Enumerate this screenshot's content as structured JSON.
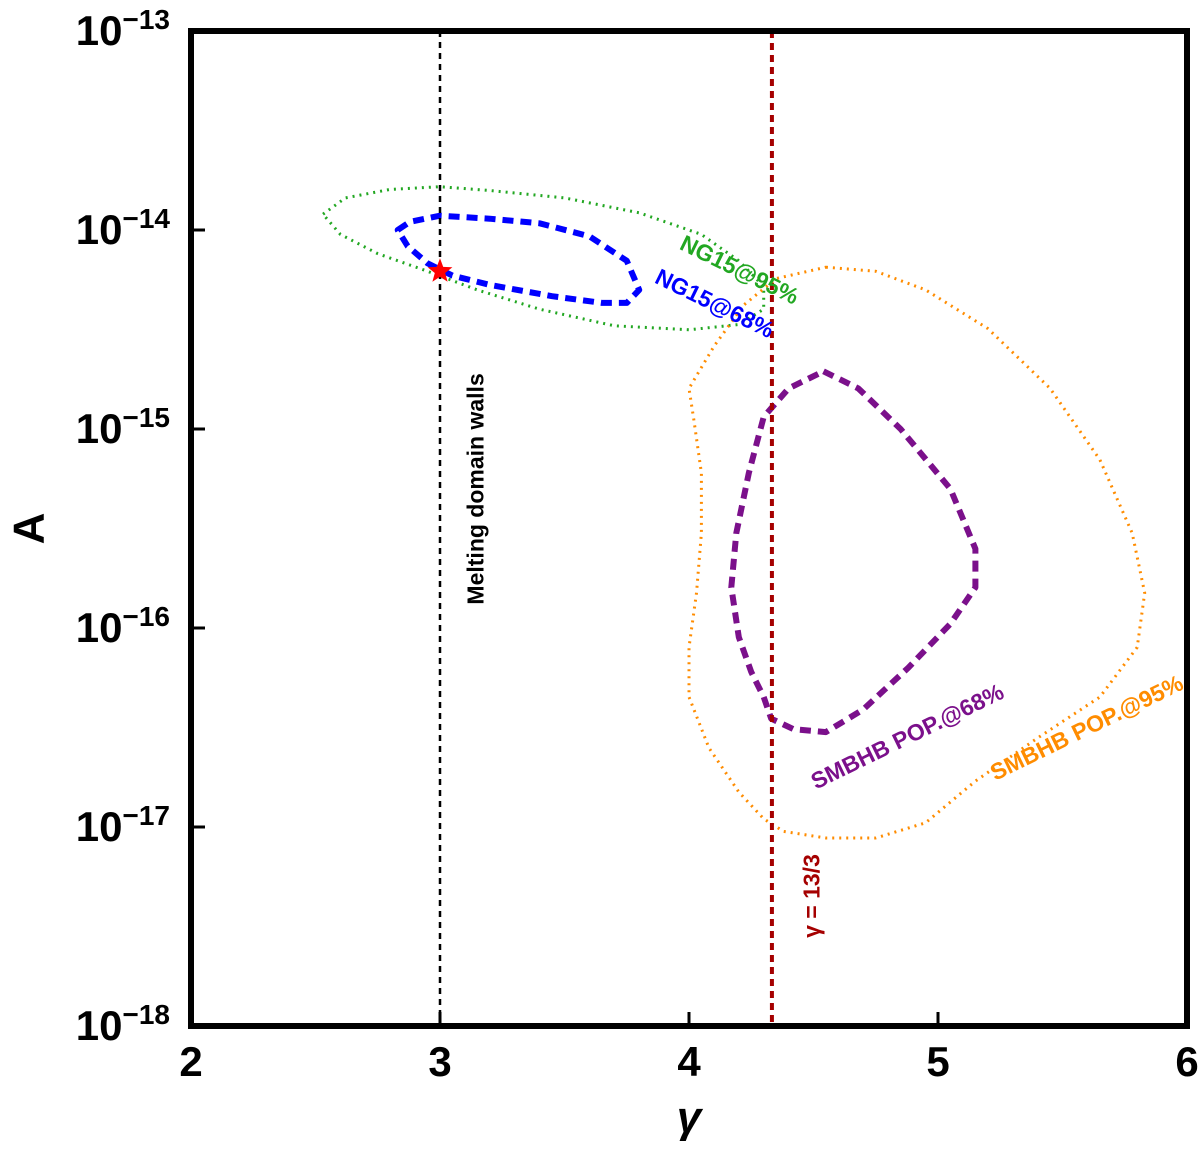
{
  "chart_data": {
    "type": "line",
    "title": "",
    "xlabel": "γ",
    "ylabel": "A",
    "xlim": [
      2,
      6
    ],
    "ylim": [
      1e-18,
      1e-13
    ],
    "yscale": "log",
    "grid": false,
    "x_ticks": [
      "2",
      "3",
      "4",
      "5",
      "6"
    ],
    "y_ticks": [
      {
        "base": "10",
        "exp": "−13"
      },
      {
        "base": "10",
        "exp": "−14"
      },
      {
        "base": "10",
        "exp": "−15"
      },
      {
        "base": "10",
        "exp": "−16"
      },
      {
        "base": "10",
        "exp": "−17"
      },
      {
        "base": "10",
        "exp": "−18"
      }
    ],
    "vlines": [
      {
        "x": 3.0,
        "color": "#000000",
        "style": "dashed",
        "label": "Melting domain walls"
      },
      {
        "x": 4.333,
        "color": "#a50000",
        "style": "dashed",
        "label": "γ = 13/3"
      }
    ],
    "marker": {
      "x": 3.0,
      "y": 6.2e-15,
      "shape": "star",
      "color": "#ff0000"
    },
    "series": [
      {
        "name": "NG15@95%",
        "color": "#22a722",
        "style": "dotted",
        "closed": true,
        "points": [
          [
            2.53,
            1.2e-14
          ],
          [
            2.62,
            1.45e-14
          ],
          [
            2.8,
            1.6e-14
          ],
          [
            3.0,
            1.65e-14
          ],
          [
            3.2,
            1.58e-14
          ],
          [
            3.5,
            1.45e-14
          ],
          [
            3.8,
            1.22e-14
          ],
          [
            4.05,
            9.5e-15
          ],
          [
            4.2,
            7e-15
          ],
          [
            4.3,
            5.2e-15
          ],
          [
            4.3,
            4e-15
          ],
          [
            4.2,
            3.35e-15
          ],
          [
            4.0,
            3.15e-15
          ],
          [
            3.7,
            3.3e-15
          ],
          [
            3.4,
            4e-15
          ],
          [
            3.15,
            5e-15
          ],
          [
            2.95,
            6.2e-15
          ],
          [
            2.75,
            7.6e-15
          ],
          [
            2.6,
            9.5e-15
          ],
          [
            2.53,
            1.2e-14
          ]
        ]
      },
      {
        "name": "NG15@68%",
        "color": "#0000ff",
        "style": "dashed",
        "closed": true,
        "points": [
          [
            2.83,
            1e-14
          ],
          [
            2.88,
            1.1e-14
          ],
          [
            3.0,
            1.18e-14
          ],
          [
            3.2,
            1.14e-14
          ],
          [
            3.4,
            1.08e-14
          ],
          [
            3.6,
            9.3e-15
          ],
          [
            3.75,
            7e-15
          ],
          [
            3.8,
            5e-15
          ],
          [
            3.75,
            4.3e-15
          ],
          [
            3.65,
            4.3e-15
          ],
          [
            3.45,
            4.65e-15
          ],
          [
            3.2,
            5.3e-15
          ],
          [
            3.05,
            5.9e-15
          ],
          [
            2.95,
            6.8e-15
          ],
          [
            2.87,
            8.3e-15
          ],
          [
            2.83,
            1e-14
          ]
        ]
      },
      {
        "name": "SMBHB POP.@95%",
        "color": "#ff8c00",
        "style": "dotted",
        "closed": true,
        "points": [
          [
            4.55,
            6.5e-15
          ],
          [
            4.75,
            6.2e-15
          ],
          [
            4.95,
            5e-15
          ],
          [
            5.2,
            3.2e-15
          ],
          [
            5.45,
            1.6e-15
          ],
          [
            5.65,
            7e-16
          ],
          [
            5.78,
            3e-16
          ],
          [
            5.83,
            1.5e-16
          ],
          [
            5.8,
            8e-17
          ],
          [
            5.65,
            4.5e-17
          ],
          [
            5.4,
            2.8e-17
          ],
          [
            5.15,
            1.7e-17
          ],
          [
            4.95,
            1.05e-17
          ],
          [
            4.75,
            8.8e-18
          ],
          [
            4.55,
            8.8e-18
          ],
          [
            4.38,
            9.5e-18
          ],
          [
            4.3,
            1.1e-17
          ],
          [
            4.2,
            1.5e-17
          ],
          [
            4.08,
            2.5e-17
          ],
          [
            4.0,
            4.5e-17
          ],
          [
            4.0,
            8e-17
          ],
          [
            4.03,
            1.5e-16
          ],
          [
            4.05,
            3e-16
          ],
          [
            4.05,
            6e-16
          ],
          [
            4.02,
            1.1e-15
          ],
          [
            4.0,
            1.6e-15
          ],
          [
            4.1,
            2.6e-15
          ],
          [
            4.22,
            4.2e-15
          ],
          [
            4.35,
            5.7e-15
          ],
          [
            4.55,
            6.5e-15
          ]
        ]
      },
      {
        "name": "SMBHB POP.@68%",
        "color": "#7b108b",
        "style": "dashed",
        "closed": true,
        "points": [
          [
            4.54,
            1.95e-15
          ],
          [
            4.68,
            1.6e-15
          ],
          [
            4.85,
            1e-15
          ],
          [
            5.05,
            5e-16
          ],
          [
            5.15,
            2.5e-16
          ],
          [
            5.15,
            1.6e-16
          ],
          [
            5.05,
            1.05e-16
          ],
          [
            4.88,
            6.3e-17
          ],
          [
            4.7,
            3.9e-17
          ],
          [
            4.55,
            3e-17
          ],
          [
            4.42,
            3.1e-17
          ],
          [
            4.33,
            3.5e-17
          ],
          [
            4.3,
            4.5e-17
          ],
          [
            4.25,
            6e-17
          ],
          [
            4.2,
            9e-17
          ],
          [
            4.17,
            1.6e-16
          ],
          [
            4.19,
            3e-16
          ],
          [
            4.24,
            6e-16
          ],
          [
            4.3,
            1.15e-15
          ],
          [
            4.4,
            1.6e-15
          ],
          [
            4.54,
            1.95e-15
          ]
        ]
      }
    ],
    "annotations": [
      {
        "text": "NG15@95%",
        "color": "#22a722",
        "x": 4.2,
        "y": 6.2e-15,
        "rotate": 26
      },
      {
        "text": "NG15@68%",
        "color": "#0000ff",
        "x": 4.1,
        "y": 4.2e-15,
        "rotate": 26
      },
      {
        "text": "SMBHB POP.@68%",
        "color": "#7b108b",
        "x": 4.88,
        "y": 2.8e-17,
        "rotate": -26
      },
      {
        "text": "SMBHB POP.@95%",
        "color": "#ff8c00",
        "x": 5.6,
        "y": 3.1e-17,
        "rotate": -26
      },
      {
        "text": "Melting domain walls",
        "color": "#000000",
        "x": 3.15,
        "y": 5e-16,
        "rotate": -90
      },
      {
        "text": "γ = 13/3",
        "color": "#a50000",
        "x": 4.5,
        "y": 4.5e-18,
        "rotate": -90
      }
    ]
  }
}
